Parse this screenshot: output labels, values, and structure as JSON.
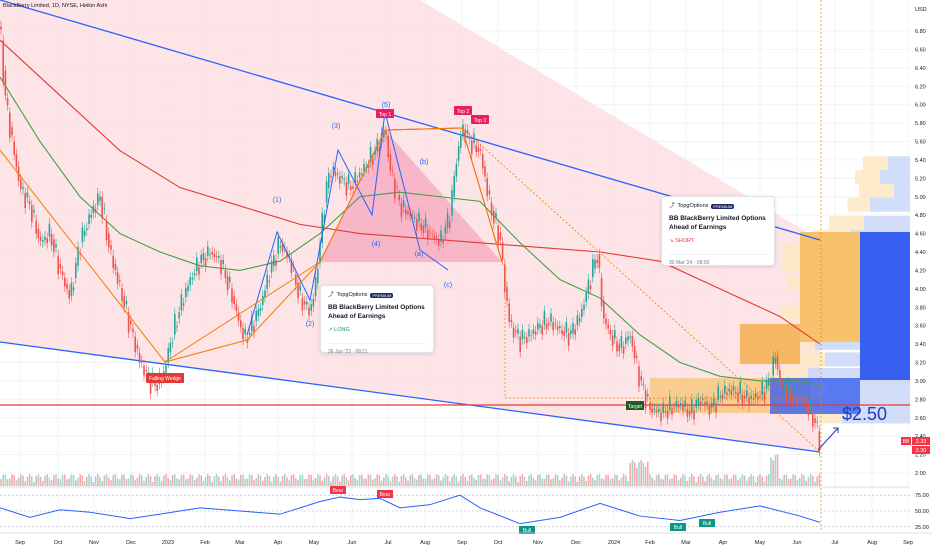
{
  "header": {
    "title": "BlackBerry Limited, 1D, NYSE, Heikin Ashi"
  },
  "chart_data": {
    "type": "candlestick",
    "title": "BlackBerry Limited, 1D, NYSE, Heikin Ashi",
    "currency": "USD",
    "price_axis": {
      "ticks": [
        "6.80",
        "6.60",
        "6.40",
        "6.20",
        "6.00",
        "5.80",
        "5.60",
        "5.40",
        "5.20",
        "5.00",
        "4.80",
        "4.60",
        "4.40",
        "4.20",
        "4.00",
        "3.80",
        "3.60",
        "3.40",
        "3.20",
        "3.00",
        "2.80",
        "2.60",
        "2.40",
        "2.20",
        "2.00"
      ],
      "range": [
        2.0,
        6.8
      ]
    },
    "price_badges": {
      "bb_label": "BB",
      "last": "2.33",
      "low": "2.30"
    },
    "time_axis": [
      "Sep",
      "Oct",
      "Nov",
      "Dec",
      "2023",
      "Feb",
      "Mar",
      "Apr",
      "May",
      "Jun",
      "Jul",
      "Aug",
      "Sep",
      "Oct",
      "Nov",
      "Dec",
      "2024",
      "Feb",
      "Mar",
      "Apr",
      "May",
      "Jun",
      "Jul",
      "Aug",
      "Sep"
    ],
    "price_path": [
      [
        0,
        6.85
      ],
      [
        5,
        6.1
      ],
      [
        12,
        5.6
      ],
      [
        20,
        5.1
      ],
      [
        30,
        4.9
      ],
      [
        40,
        4.5
      ],
      [
        50,
        4.6
      ],
      [
        60,
        4.2
      ],
      [
        70,
        3.9
      ],
      [
        80,
        4.5
      ],
      [
        90,
        4.8
      ],
      [
        100,
        5.0
      ],
      [
        110,
        4.4
      ],
      [
        120,
        4.0
      ],
      [
        130,
        3.6
      ],
      [
        140,
        3.2
      ],
      [
        150,
        3.0
      ],
      [
        156,
        2.95
      ],
      [
        163,
        3.05
      ],
      [
        170,
        3.4
      ],
      [
        180,
        3.8
      ],
      [
        190,
        4.1
      ],
      [
        200,
        4.3
      ],
      [
        210,
        4.4
      ],
      [
        220,
        4.3
      ],
      [
        230,
        4.0
      ],
      [
        240,
        3.6
      ],
      [
        245,
        3.45
      ],
      [
        250,
        3.55
      ],
      [
        260,
        3.8
      ],
      [
        270,
        4.2
      ],
      [
        280,
        4.5
      ],
      [
        290,
        4.3
      ],
      [
        300,
        3.9
      ],
      [
        310,
        3.75
      ],
      [
        315,
        4.0
      ],
      [
        320,
        4.5
      ],
      [
        325,
        5.0
      ],
      [
        330,
        5.3
      ],
      [
        340,
        5.2
      ],
      [
        350,
        5.1
      ],
      [
        360,
        5.25
      ],
      [
        370,
        5.4
      ],
      [
        380,
        5.6
      ],
      [
        385,
        5.75
      ],
      [
        390,
        5.3
      ],
      [
        400,
        4.9
      ],
      [
        410,
        4.8
      ],
      [
        420,
        4.7
      ],
      [
        430,
        4.6
      ],
      [
        440,
        4.5
      ],
      [
        450,
        4.8
      ],
      [
        455,
        5.3
      ],
      [
        462,
        5.75
      ],
      [
        470,
        5.6
      ],
      [
        480,
        5.5
      ],
      [
        490,
        4.9
      ],
      [
        500,
        4.55
      ],
      [
        505,
        4.0
      ],
      [
        510,
        3.6
      ],
      [
        520,
        3.45
      ],
      [
        530,
        3.5
      ],
      [
        540,
        3.6
      ],
      [
        550,
        3.65
      ],
      [
        560,
        3.55
      ],
      [
        570,
        3.5
      ],
      [
        580,
        3.7
      ],
      [
        590,
        4.1
      ],
      [
        597,
        4.4
      ],
      [
        603,
        3.7
      ],
      [
        610,
        3.5
      ],
      [
        620,
        3.35
      ],
      [
        630,
        3.5
      ],
      [
        640,
        3.0
      ],
      [
        650,
        2.7
      ],
      [
        660,
        2.65
      ],
      [
        670,
        2.7
      ],
      [
        680,
        2.75
      ],
      [
        690,
        2.65
      ],
      [
        700,
        2.8
      ],
      [
        710,
        2.7
      ],
      [
        720,
        2.85
      ],
      [
        730,
        2.9
      ],
      [
        740,
        2.85
      ],
      [
        750,
        2.8
      ],
      [
        760,
        2.85
      ],
      [
        770,
        3.0
      ],
      [
        775,
        3.3
      ],
      [
        780,
        2.95
      ],
      [
        790,
        2.85
      ],
      [
        800,
        2.8
      ],
      [
        808,
        2.7
      ],
      [
        815,
        2.55
      ],
      [
        820,
        2.33
      ]
    ],
    "ma_long": [
      [
        0,
        6.7
      ],
      [
        60,
        6.1
      ],
      [
        120,
        5.5
      ],
      [
        180,
        5.1
      ],
      [
        240,
        4.9
      ],
      [
        300,
        4.7
      ],
      [
        360,
        4.6
      ],
      [
        420,
        4.55
      ],
      [
        480,
        4.5
      ],
      [
        540,
        4.45
      ],
      [
        600,
        4.4
      ],
      [
        660,
        4.3
      ],
      [
        720,
        4.0
      ],
      [
        780,
        3.7
      ],
      [
        820,
        3.4
      ]
    ],
    "ma_mid": [
      [
        0,
        6.3
      ],
      [
        40,
        5.6
      ],
      [
        80,
        5.0
      ],
      [
        120,
        4.6
      ],
      [
        160,
        4.4
      ],
      [
        200,
        4.25
      ],
      [
        240,
        4.2
      ],
      [
        280,
        4.3
      ],
      [
        320,
        4.6
      ],
      [
        360,
        5.0
      ],
      [
        400,
        5.05
      ],
      [
        440,
        5.0
      ],
      [
        480,
        4.95
      ],
      [
        520,
        4.5
      ],
      [
        560,
        4.1
      ],
      [
        600,
        3.9
      ],
      [
        640,
        3.5
      ],
      [
        680,
        3.2
      ],
      [
        720,
        3.05
      ],
      [
        760,
        3.0
      ],
      [
        800,
        3.0
      ],
      [
        820,
        2.95
      ]
    ],
    "resistance_level": 2.73,
    "pattern": {
      "name": "Falling Wedge",
      "wave_labels": [
        "(1)",
        "(2)",
        "(3)",
        "(4)",
        "(5)",
        "(a)",
        "(b)",
        "(c)"
      ],
      "tops": [
        "Top 1",
        "Top 2",
        "Top 3"
      ],
      "target_label": "Target",
      "target_price": "$2.50"
    },
    "ideas": [
      {
        "brand": "TopgOptions",
        "badge": "PREMIUM",
        "title": "BB BlackBerry Limited Options Ahead of Earnings",
        "signal": "LONG",
        "date": "26 Jun '23 · 08:11"
      },
      {
        "brand": "TopgOptions",
        "badge": "PREMIUM",
        "title": "BB BlackBerry Limited Options Ahead of Earnings",
        "signal": "SHORT",
        "date": "30 Mar '24 · 08:50"
      }
    ],
    "oscillator": {
      "ticks": [
        "75.00",
        "50.00",
        "25.00"
      ],
      "range": [
        20,
        80
      ],
      "values": [
        [
          0,
          55
        ],
        [
          30,
          40
        ],
        [
          60,
          52
        ],
        [
          90,
          48
        ],
        [
          130,
          38
        ],
        [
          160,
          45
        ],
        [
          200,
          55
        ],
        [
          240,
          50
        ],
        [
          280,
          45
        ],
        [
          320,
          65
        ],
        [
          340,
          72
        ],
        [
          360,
          68
        ],
        [
          380,
          70
        ],
        [
          400,
          55
        ],
        [
          430,
          60
        ],
        [
          460,
          75
        ],
        [
          480,
          55
        ],
        [
          520,
          30
        ],
        [
          560,
          40
        ],
        [
          600,
          62
        ],
        [
          640,
          42
        ],
        [
          680,
          35
        ],
        [
          720,
          48
        ],
        [
          760,
          58
        ],
        [
          800,
          42
        ],
        [
          820,
          32
        ]
      ],
      "labels": [
        "Bear",
        "Bear",
        "Bull",
        "Bull",
        "Bull"
      ]
    },
    "grid": true
  },
  "colors": {
    "up": "#26a69a",
    "down": "#ef5350",
    "wedge_fill": "#fde1e3",
    "line_blue": "#2962ff",
    "orange": "#f57c00",
    "ma_red": "#e53935",
    "ma_green": "#43a047"
  }
}
